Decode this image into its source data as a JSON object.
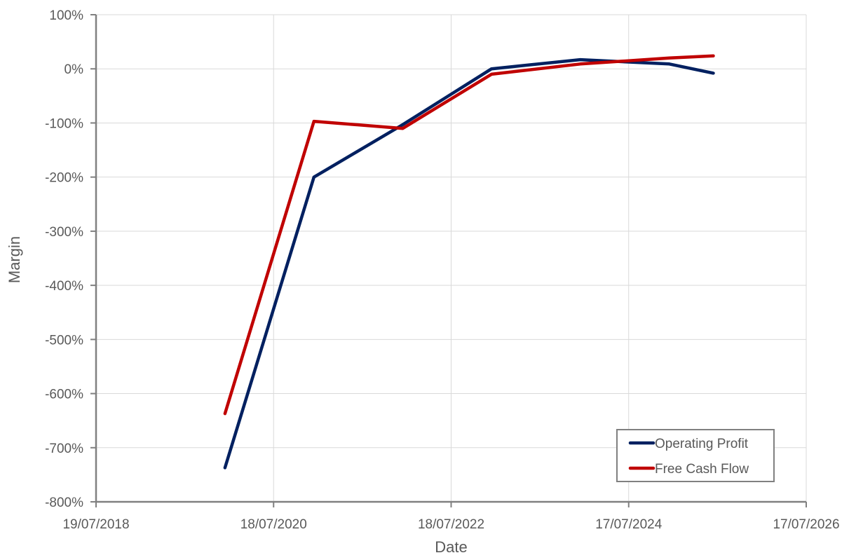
{
  "chart_data": {
    "type": "line",
    "title": "",
    "xlabel": "Date",
    "ylabel": "Margin",
    "x_axis": {
      "kind": "date",
      "min": "2018-07-19",
      "max": "2026-07-17",
      "ticks": [
        "2018-07-19",
        "2020-07-18",
        "2022-07-18",
        "2024-07-17",
        "2026-07-17"
      ],
      "tick_labels": [
        "19/07/2018",
        "18/07/2020",
        "18/07/2022",
        "17/07/2024",
        "17/07/2026"
      ]
    },
    "y_axis": {
      "min": -800,
      "max": 100,
      "step": 100,
      "unit": "%",
      "tick_labels": [
        "100%",
        "0%",
        "-100%",
        "-200%",
        "-300%",
        "-400%",
        "-500%",
        "-600%",
        "-700%",
        "-800%"
      ]
    },
    "grid": true,
    "legend_position": "bottom-right",
    "series": [
      {
        "name": "Operating Profit",
        "color": "#002060",
        "points": [
          {
            "x": "2019-12-31",
            "y": -737
          },
          {
            "x": "2020-12-31",
            "y": -200
          },
          {
            "x": "2021-12-31",
            "y": -103
          },
          {
            "x": "2022-12-31",
            "y": 0
          },
          {
            "x": "2023-12-31",
            "y": 17
          },
          {
            "x": "2024-12-31",
            "y": 9
          },
          {
            "x": "2025-06-30",
            "y": -8
          }
        ]
      },
      {
        "name": "Free Cash Flow",
        "color": "#c00000",
        "points": [
          {
            "x": "2019-12-31",
            "y": -637
          },
          {
            "x": "2020-12-31",
            "y": -97
          },
          {
            "x": "2021-12-31",
            "y": -110
          },
          {
            "x": "2022-12-31",
            "y": -10
          },
          {
            "x": "2023-12-31",
            "y": 9
          },
          {
            "x": "2024-12-31",
            "y": 20
          },
          {
            "x": "2025-06-30",
            "y": 24
          }
        ]
      }
    ]
  }
}
